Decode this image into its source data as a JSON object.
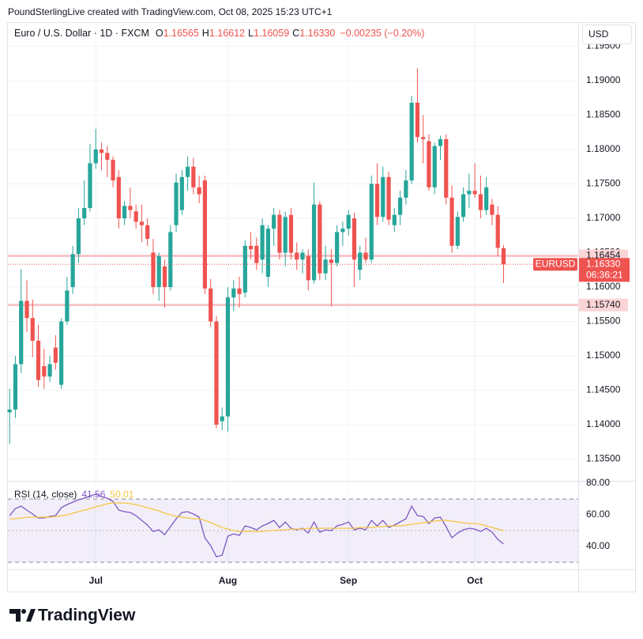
{
  "header": {
    "attribution": "PoundSterlingLive created with TradingView.com, Oct 08, 2025 15:23 UTC+1",
    "currency": "USD",
    "logo": "TradingView"
  },
  "chart_data": [
    {
      "type": "candlestick",
      "title": "Euro / U.S. Dollar · 1D · FXCM",
      "ohlc_letters": [
        "O",
        "H",
        "L",
        "C"
      ],
      "legend_values": [
        "1.16565",
        "1.16612",
        "1.16059",
        "1.16330"
      ],
      "change_label": "−0.00235 (−0.20%)",
      "symbol": "EURUSD",
      "countdown": "06:36:21",
      "up_color": "#26a69a",
      "down_color": "#ef5350",
      "open": [
        1.1418,
        1.1422,
        1.1488,
        1.158,
        1.1555,
        1.1522,
        1.1485,
        1.147,
        1.1512,
        1.1458,
        1.155,
        1.16,
        1.1648,
        1.17,
        1.1715,
        1.178,
        1.18,
        1.1795,
        1.1785,
        1.176,
        1.17,
        1.1718,
        1.171,
        1.1695,
        1.169,
        1.165,
        1.16,
        1.163,
        1.16,
        1.169,
        1.1712,
        1.176,
        1.1775,
        1.1745,
        1.1755,
        1.1598,
        1.155,
        1.1405,
        1.1412,
        1.1585,
        1.1598,
        1.1592,
        1.166,
        1.166,
        1.164,
        1.1615,
        1.1685,
        1.1705,
        1.165,
        1.1705,
        1.165,
        1.164,
        1.1645,
        1.161,
        1.172,
        1.162,
        1.164,
        1.1635,
        1.168,
        1.1685,
        1.17,
        1.1625,
        1.165,
        1.164,
        1.175,
        1.1702,
        1.176,
        1.169,
        1.1705,
        1.173,
        1.1755,
        1.1868,
        1.1818,
        1.1812,
        1.1745,
        1.1805,
        1.1815,
        1.173,
        1.166,
        1.1702,
        1.1735,
        1.174,
        1.1735,
        1.1712,
        1.172,
        1.1705,
        1.16565
      ],
      "high": [
        1.1452,
        1.15,
        1.1626,
        1.161,
        1.1582,
        1.1545,
        1.151,
        1.15,
        1.153,
        1.1555,
        1.1615,
        1.166,
        1.1715,
        1.1755,
        1.1808,
        1.183,
        1.181,
        1.1805,
        1.179,
        1.177,
        1.1725,
        1.1745,
        1.172,
        1.172,
        1.17,
        1.167,
        1.165,
        1.164,
        1.169,
        1.1765,
        1.177,
        1.179,
        1.1788,
        1.1762,
        1.1762,
        1.1612,
        1.1558,
        1.1425,
        1.16,
        1.161,
        1.1615,
        1.1668,
        1.168,
        1.1672,
        1.17,
        1.169,
        1.1715,
        1.1712,
        1.171,
        1.1715,
        1.1665,
        1.1655,
        1.1655,
        1.1752,
        1.1725,
        1.166,
        1.1655,
        1.169,
        1.1695,
        1.1712,
        1.1708,
        1.166,
        1.1672,
        1.1762,
        1.178,
        1.1775,
        1.1768,
        1.1715,
        1.174,
        1.177,
        1.1878,
        1.1918,
        1.185,
        1.1822,
        1.181,
        1.182,
        1.1822,
        1.1748,
        1.171,
        1.1745,
        1.1765,
        1.178,
        1.1762,
        1.176,
        1.1728,
        1.1718,
        1.16612
      ],
      "low": [
        1.1372,
        1.141,
        1.1475,
        1.1535,
        1.1498,
        1.1455,
        1.1452,
        1.1462,
        1.148,
        1.1452,
        1.1545,
        1.159,
        1.1635,
        1.169,
        1.171,
        1.1772,
        1.177,
        1.176,
        1.1745,
        1.1685,
        1.169,
        1.17,
        1.1685,
        1.1665,
        1.166,
        1.159,
        1.158,
        1.157,
        1.1595,
        1.168,
        1.1705,
        1.174,
        1.1735,
        1.1722,
        1.159,
        1.1542,
        1.1395,
        1.1392,
        1.139,
        1.1565,
        1.157,
        1.1585,
        1.164,
        1.1625,
        1.162,
        1.16,
        1.166,
        1.164,
        1.163,
        1.164,
        1.1625,
        1.162,
        1.1595,
        1.1605,
        1.161,
        1.161,
        1.1572,
        1.163,
        1.166,
        1.1675,
        1.16,
        1.161,
        1.1635,
        1.1635,
        1.169,
        1.1695,
        1.169,
        1.168,
        1.169,
        1.172,
        1.175,
        1.181,
        1.178,
        1.174,
        1.1735,
        1.1785,
        1.172,
        1.165,
        1.1655,
        1.1695,
        1.1715,
        1.173,
        1.17,
        1.1705,
        1.169,
        1.1645,
        1.16059
      ],
      "close": [
        1.1422,
        1.1488,
        1.158,
        1.1555,
        1.1522,
        1.1465,
        1.147,
        1.1488,
        1.149,
        1.155,
        1.1595,
        1.1648,
        1.17,
        1.1715,
        1.178,
        1.18,
        1.1795,
        1.1785,
        1.1755,
        1.17,
        1.1718,
        1.1712,
        1.1695,
        1.169,
        1.167,
        1.16,
        1.1645,
        1.16,
        1.168,
        1.1752,
        1.176,
        1.1775,
        1.1745,
        1.1735,
        1.1598,
        1.155,
        1.14,
        1.1412,
        1.1585,
        1.1598,
        1.159,
        1.166,
        1.1655,
        1.1635,
        1.169,
        1.1685,
        1.1705,
        1.165,
        1.1702,
        1.165,
        1.164,
        1.165,
        1.161,
        1.172,
        1.162,
        1.164,
        1.1635,
        1.168,
        1.1685,
        1.1705,
        1.164,
        1.165,
        1.164,
        1.175,
        1.1702,
        1.176,
        1.1698,
        1.1705,
        1.173,
        1.1755,
        1.1868,
        1.1818,
        1.1815,
        1.1745,
        1.1805,
        1.1815,
        1.173,
        1.166,
        1.1702,
        1.1735,
        1.174,
        1.1735,
        1.1712,
        1.1745,
        1.1705,
        1.1657,
        1.1633
      ],
      "xlim": [
        -0.3,
        99
      ],
      "xticks": [
        {
          "value": 15,
          "label": "Jul"
        },
        {
          "value": 38,
          "label": "Aug"
        },
        {
          "value": 59,
          "label": "Sep"
        },
        {
          "value": 81,
          "label": "Oct"
        }
      ],
      "ylim": [
        1.13184,
        1.19851
      ],
      "yticks": [
        {
          "value": 1.195,
          "label": "1.19500"
        },
        {
          "value": 1.19,
          "label": "1.19000"
        },
        {
          "value": 1.185,
          "label": "1.18500"
        },
        {
          "value": 1.18,
          "label": "1.18000"
        },
        {
          "value": 1.175,
          "label": "1.17500"
        },
        {
          "value": 1.17,
          "label": "1.17000"
        },
        {
          "value": 1.165,
          "label": "1.16500"
        },
        {
          "value": 1.16,
          "label": "1.16000"
        },
        {
          "value": 1.155,
          "label": "1.15500"
        },
        {
          "value": 1.15,
          "label": "1.15000"
        },
        {
          "value": 1.145,
          "label": "1.14500"
        },
        {
          "value": 1.14,
          "label": "1.14000"
        },
        {
          "value": 1.135,
          "label": "1.13500"
        }
      ],
      "price_lines": [
        {
          "value": 1.16454,
          "label": "1.16454"
        },
        {
          "value": 1.1574,
          "label": "1.15740"
        }
      ],
      "grid": true
    },
    {
      "type": "line",
      "title": "RSI (14, close)",
      "series": [
        {
          "color": "#7e57c2",
          "values": [
            59.5,
            64,
            65.5,
            63,
            60.5,
            58,
            58,
            59,
            59.5,
            64.5,
            66.5,
            68,
            69.5,
            70.5,
            72,
            73,
            71.5,
            70.5,
            68.5,
            63,
            62,
            61.5,
            59.5,
            56.5,
            53.5,
            49.5,
            50.5,
            47.5,
            52.5,
            57.5,
            61.5,
            62,
            60.5,
            58.5,
            45.5,
            40.5,
            33.5,
            34.5,
            46.5,
            48,
            47,
            53,
            52,
            50.5,
            53,
            54.5,
            56.5,
            52,
            55.5,
            51.5,
            50.5,
            51.5,
            48.5,
            55.5,
            49,
            50.5,
            50,
            53,
            54,
            55.5,
            50.5,
            51.5,
            50.5,
            56.5,
            53,
            56.5,
            52,
            53.5,
            55.5,
            57.5,
            65.5,
            59.5,
            59,
            54.5,
            58,
            58.5,
            52.5,
            45.5,
            48.5,
            50.5,
            51.5,
            51,
            49.5,
            51.5,
            49,
            44.5,
            41.56
          ]
        },
        {
          "color": "#f5c542",
          "values": [
            57.5,
            57.5,
            58,
            58.5,
            58.5,
            58.5,
            58.5,
            58.5,
            59,
            59.5,
            60,
            61,
            62,
            63,
            64,
            65,
            66,
            67,
            67.5,
            67.5,
            67.5,
            67,
            66.5,
            65.5,
            64.5,
            63.5,
            62.5,
            61,
            60,
            59,
            58.5,
            58,
            57.5,
            57.5,
            56.5,
            55,
            53.5,
            52,
            51,
            50,
            49.5,
            49.5,
            49.5,
            49.5,
            49.5,
            50,
            50,
            50.5,
            50.5,
            51,
            51,
            51,
            51.5,
            51.5,
            51.5,
            51.5,
            51.5,
            51.5,
            51.5,
            51.5,
            51.5,
            52,
            52,
            52,
            52.5,
            52.5,
            53,
            53,
            53,
            53.5,
            54,
            54.5,
            55,
            55.5,
            56,
            56.5,
            56.5,
            56,
            55.5,
            55,
            54.5,
            54.5,
            54,
            53,
            52,
            51,
            50.01
          ]
        }
      ],
      "ylim": [
        25.5,
        81
      ],
      "yticks": [
        {
          "value": 80,
          "label": "80.00"
        },
        {
          "value": 60,
          "label": "60.00"
        },
        {
          "value": 40,
          "label": "40.00"
        }
      ],
      "levels": [
        70,
        50,
        30
      ],
      "band_color": "#7e57c2"
    }
  ]
}
